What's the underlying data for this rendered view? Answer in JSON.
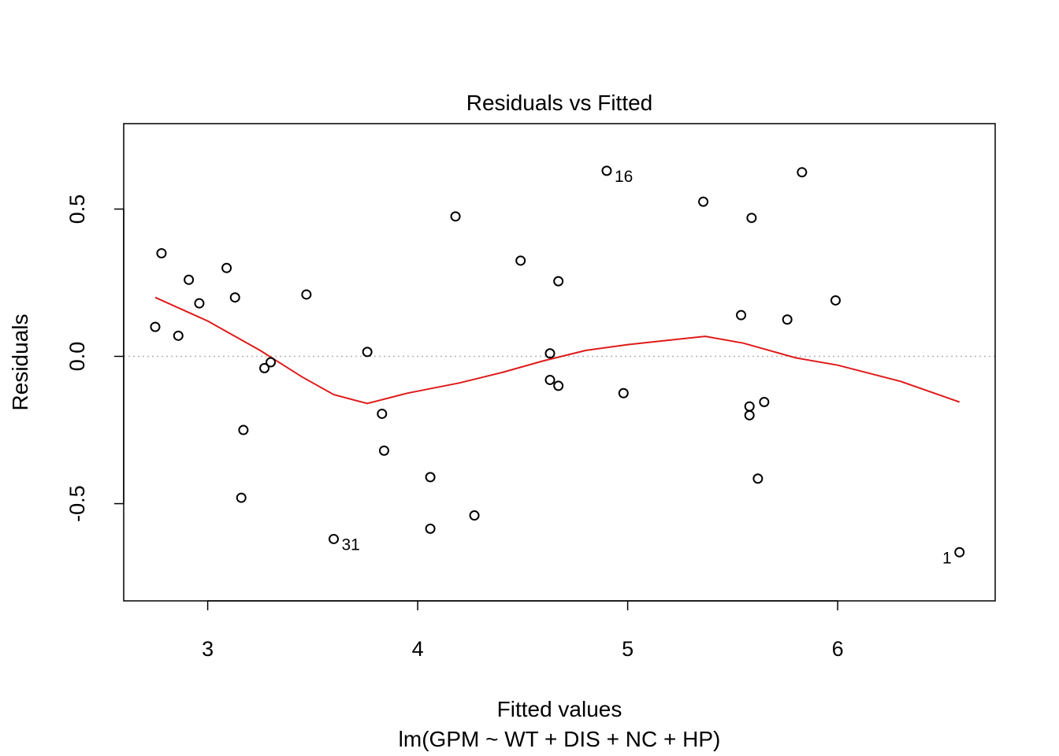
{
  "chart_data": {
    "type": "scatter",
    "title": "Residuals vs Fitted",
    "xlabel": "Fitted values",
    "subtitle": "lm(GPM ~ WT + DIS + NC + HP)",
    "ylabel": "Residuals",
    "xlim": [
      2.6,
      6.75
    ],
    "ylim": [
      -0.83,
      0.79
    ],
    "x_ticks": [
      3,
      4,
      5,
      6
    ],
    "y_ticks": [
      -0.5,
      0.0,
      0.5
    ],
    "x_tick_labels": [
      "3",
      "4",
      "5",
      "6"
    ],
    "y_tick_labels": [
      "-0.5",
      "0.0",
      "0.5"
    ],
    "reference_line": {
      "y": 0,
      "style": "dotted",
      "color": "#b3b3b3"
    },
    "points": [
      {
        "x": 2.75,
        "y": 0.1
      },
      {
        "x": 2.78,
        "y": 0.35
      },
      {
        "x": 2.86,
        "y": 0.07
      },
      {
        "x": 2.91,
        "y": 0.26
      },
      {
        "x": 2.96,
        "y": 0.18
      },
      {
        "x": 3.09,
        "y": 0.3
      },
      {
        "x": 3.13,
        "y": 0.2
      },
      {
        "x": 3.16,
        "y": -0.48
      },
      {
        "x": 3.17,
        "y": -0.25
      },
      {
        "x": 3.27,
        "y": -0.04
      },
      {
        "x": 3.3,
        "y": -0.02
      },
      {
        "x": 3.47,
        "y": 0.21
      },
      {
        "x": 3.6,
        "y": -0.62,
        "label": "31"
      },
      {
        "x": 3.76,
        "y": 0.015
      },
      {
        "x": 3.83,
        "y": -0.195
      },
      {
        "x": 3.84,
        "y": -0.32
      },
      {
        "x": 4.06,
        "y": -0.41
      },
      {
        "x": 4.06,
        "y": -0.585
      },
      {
        "x": 4.18,
        "y": 0.475
      },
      {
        "x": 4.27,
        "y": -0.54
      },
      {
        "x": 4.49,
        "y": 0.325
      },
      {
        "x": 4.63,
        "y": 0.01
      },
      {
        "x": 4.63,
        "y": -0.08
      },
      {
        "x": 4.67,
        "y": -0.1
      },
      {
        "x": 4.67,
        "y": 0.255
      },
      {
        "x": 4.9,
        "y": 0.63,
        "label": "16"
      },
      {
        "x": 4.98,
        "y": -0.125
      },
      {
        "x": 5.36,
        "y": 0.525
      },
      {
        "x": 5.54,
        "y": 0.14
      },
      {
        "x": 5.58,
        "y": -0.17
      },
      {
        "x": 5.58,
        "y": -0.2
      },
      {
        "x": 5.59,
        "y": 0.47
      },
      {
        "x": 5.62,
        "y": -0.415
      },
      {
        "x": 5.65,
        "y": -0.155
      },
      {
        "x": 5.76,
        "y": 0.125
      },
      {
        "x": 5.83,
        "y": 0.625
      },
      {
        "x": 5.99,
        "y": 0.19
      },
      {
        "x": 6.58,
        "y": -0.665,
        "label": "1"
      }
    ],
    "smooth_line": {
      "color": "#df1a1a",
      "x": [
        2.75,
        3.0,
        3.25,
        3.45,
        3.6,
        3.76,
        3.95,
        4.2,
        4.4,
        4.6,
        4.8,
        5.0,
        5.2,
        5.37,
        5.55,
        5.8,
        6.0,
        6.3,
        6.58
      ],
      "y": [
        0.2,
        0.12,
        0.02,
        -0.07,
        -0.13,
        -0.16,
        -0.125,
        -0.09,
        -0.055,
        -0.015,
        0.02,
        0.04,
        0.055,
        0.068,
        0.045,
        -0.005,
        -0.03,
        -0.085,
        -0.155
      ]
    }
  }
}
